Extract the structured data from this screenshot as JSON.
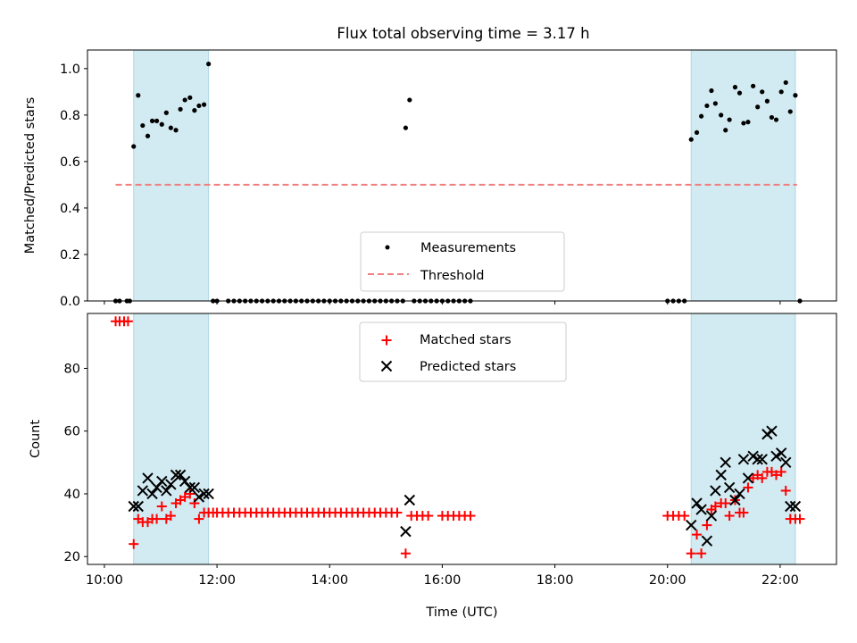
{
  "figure": {
    "title": "Flux total observing time = 3.17 h",
    "xlabel": "Time (UTC)",
    "x_ticks": [
      "10:00",
      "12:00",
      "14:00",
      "16:00",
      "18:00",
      "20:00",
      "22:00"
    ]
  },
  "colors": {
    "measurement": "#000000",
    "threshold": "#f07f7f",
    "matched": "#ff0000",
    "predicted": "#000000",
    "shade": "#add8e6"
  },
  "chart_data": [
    {
      "type": "scatter",
      "title": "Flux total observing time = 3.17 h",
      "xlabel": "",
      "ylabel": "Matched/Predicted stars",
      "x_unit": "hours UTC",
      "xlim": [
        9.7,
        23.0
      ],
      "ylim": [
        0.0,
        1.08
      ],
      "y_ticks": [
        "0.0",
        "0.2",
        "0.4",
        "0.6",
        "0.8",
        "1.0"
      ],
      "legend": {
        "placement": "lower center",
        "entries": [
          "Measurements",
          "Threshold"
        ]
      },
      "shaded_intervals": [
        [
          10.52,
          11.85
        ],
        [
          20.42,
          22.27
        ]
      ],
      "threshold": {
        "name": "Threshold",
        "y": 0.5,
        "x_range": [
          10.2,
          22.3
        ]
      },
      "series": [
        {
          "name": "Measurements",
          "x": [
            10.2,
            10.27,
            10.4,
            10.45,
            10.52,
            10.6,
            10.68,
            10.77,
            10.85,
            10.93,
            11.02,
            11.1,
            11.18,
            11.27,
            11.35,
            11.43,
            11.52,
            11.6,
            11.68,
            11.77,
            11.85,
            11.93,
            12.0,
            12.2,
            12.3,
            12.4,
            12.5,
            12.6,
            12.7,
            12.8,
            12.9,
            13.0,
            13.1,
            13.2,
            13.3,
            13.4,
            13.5,
            13.6,
            13.7,
            13.8,
            13.9,
            14.0,
            14.1,
            14.2,
            14.3,
            14.4,
            14.5,
            14.6,
            14.7,
            14.8,
            14.9,
            15.0,
            15.1,
            15.2,
            15.3,
            15.35,
            15.42,
            15.5,
            15.6,
            15.7,
            15.8,
            15.9,
            16.0,
            16.1,
            16.2,
            16.3,
            16.4,
            16.5,
            20.0,
            20.1,
            20.2,
            20.3,
            20.42,
            20.52,
            20.6,
            20.7,
            20.78,
            20.85,
            20.95,
            21.03,
            21.1,
            21.2,
            21.28,
            21.35,
            21.43,
            21.52,
            21.6,
            21.68,
            21.77,
            21.85,
            21.93,
            22.02,
            22.1,
            22.18,
            22.27,
            22.35
          ],
          "y": [
            0.0,
            0.0,
            0.0,
            0.0,
            0.665,
            0.885,
            0.755,
            0.71,
            0.775,
            0.775,
            0.76,
            0.81,
            0.745,
            0.735,
            0.825,
            0.865,
            0.875,
            0.82,
            0.84,
            0.845,
            1.02,
            0.0,
            0.0,
            0.0,
            0.0,
            0.0,
            0.0,
            0.0,
            0.0,
            0.0,
            0.0,
            0.0,
            0.0,
            0.0,
            0.0,
            0.0,
            0.0,
            0.0,
            0.0,
            0.0,
            0.0,
            0.0,
            0.0,
            0.0,
            0.0,
            0.0,
            0.0,
            0.0,
            0.0,
            0.0,
            0.0,
            0.0,
            0.0,
            0.0,
            0.0,
            0.745,
            0.865,
            0.0,
            0.0,
            0.0,
            0.0,
            0.0,
            0.0,
            0.0,
            0.0,
            0.0,
            0.0,
            0.0,
            0.0,
            0.0,
            0.0,
            0.0,
            0.695,
            0.725,
            0.795,
            0.84,
            0.905,
            0.85,
            0.8,
            0.735,
            0.78,
            0.92,
            0.895,
            0.765,
            0.77,
            0.925,
            0.835,
            0.9,
            0.86,
            0.79,
            0.78,
            0.9,
            0.94,
            0.815,
            0.885,
            0.0
          ]
        }
      ]
    },
    {
      "type": "scatter",
      "title": "",
      "xlabel": "Time (UTC)",
      "ylabel": "Count",
      "x_unit": "hours UTC",
      "xlim": [
        9.7,
        23.0
      ],
      "ylim": [
        17.5,
        97.5
      ],
      "y_ticks": [
        "20",
        "40",
        "60",
        "80"
      ],
      "legend": {
        "placement": "upper center",
        "entries": [
          "Matched stars",
          "Predicted stars"
        ]
      },
      "shaded_intervals": [
        [
          10.52,
          11.85
        ],
        [
          20.42,
          22.27
        ]
      ],
      "series": [
        {
          "name": "Matched stars",
          "marker": "plus",
          "x": [
            10.2,
            10.27,
            10.35,
            10.42,
            10.52,
            10.6,
            10.68,
            10.77,
            10.85,
            10.93,
            11.02,
            11.1,
            11.18,
            11.27,
            11.35,
            11.43,
            11.52,
            11.6,
            11.68,
            11.77,
            11.85,
            11.93,
            12.0,
            12.1,
            12.2,
            12.3,
            12.4,
            12.5,
            12.6,
            12.7,
            12.8,
            12.9,
            13.0,
            13.1,
            13.2,
            13.3,
            13.4,
            13.5,
            13.6,
            13.7,
            13.8,
            13.9,
            14.0,
            14.1,
            14.2,
            14.3,
            14.4,
            14.5,
            14.6,
            14.7,
            14.8,
            14.9,
            15.0,
            15.1,
            15.2,
            15.35,
            15.45,
            15.55,
            15.65,
            15.75,
            16.0,
            16.1,
            16.2,
            16.3,
            16.4,
            16.5,
            20.0,
            20.1,
            20.2,
            20.3,
            20.42,
            20.52,
            20.6,
            20.7,
            20.78,
            20.85,
            20.95,
            21.03,
            21.1,
            21.2,
            21.28,
            21.35,
            21.43,
            21.52,
            21.6,
            21.68,
            21.77,
            21.85,
            21.93,
            22.02,
            22.1,
            22.18,
            22.27,
            22.35
          ],
          "y": [
            95,
            95,
            95,
            95,
            24,
            32,
            31,
            31,
            32,
            32,
            36,
            32,
            33,
            37,
            38,
            39,
            40,
            37,
            32,
            34,
            34,
            34,
            34,
            34,
            34,
            34,
            34,
            34,
            34,
            34,
            34,
            34,
            34,
            34,
            34,
            34,
            34,
            34,
            34,
            34,
            34,
            34,
            34,
            34,
            34,
            34,
            34,
            34,
            34,
            34,
            34,
            34,
            34,
            34,
            34,
            21,
            33,
            33,
            33,
            33,
            33,
            33,
            33,
            33,
            33,
            33,
            33,
            33,
            33,
            33,
            21,
            27,
            21,
            30,
            35,
            36,
            37,
            37,
            33,
            38,
            34,
            34,
            42,
            45,
            46,
            45,
            47,
            47,
            46,
            47,
            41,
            32,
            32,
            32
          ]
        },
        {
          "name": "Predicted stars",
          "marker": "x",
          "x": [
            10.52,
            10.6,
            10.68,
            10.77,
            10.85,
            10.93,
            11.02,
            11.1,
            11.18,
            11.27,
            11.35,
            11.43,
            11.52,
            11.6,
            11.68,
            11.77,
            11.85,
            15.35,
            15.42,
            20.42,
            20.52,
            20.6,
            20.7,
            20.78,
            20.85,
            20.95,
            21.03,
            21.1,
            21.2,
            21.28,
            21.35,
            21.43,
            21.52,
            21.6,
            21.68,
            21.77,
            21.85,
            21.93,
            22.02,
            22.1,
            22.18,
            22.27
          ],
          "y": [
            36,
            36,
            41,
            45,
            40,
            42,
            44,
            41,
            43,
            46,
            46,
            44,
            42,
            42,
            39,
            40,
            40,
            28,
            38,
            30,
            37,
            35,
            25,
            33,
            41,
            46,
            50,
            42,
            38,
            40,
            51,
            45,
            52,
            51,
            51,
            59,
            60,
            52,
            53,
            50,
            36,
            36
          ]
        }
      ]
    }
  ]
}
